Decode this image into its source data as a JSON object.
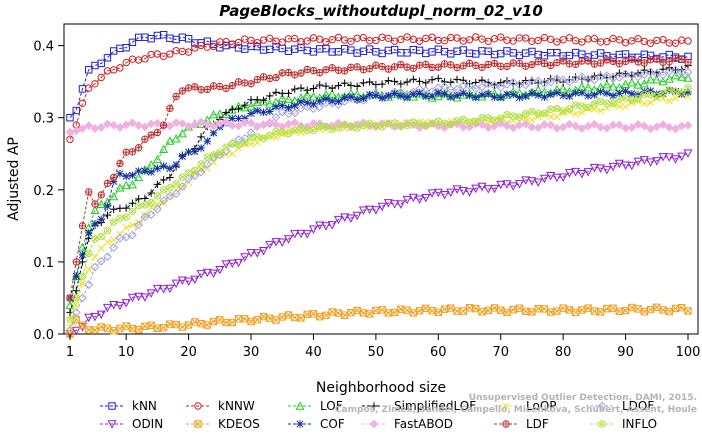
{
  "chart_data": {
    "type": "line",
    "title": "PageBlocks_withoutdupl_norm_02_v10",
    "xlabel": "Neighborhood size",
    "ylabel": "Adjusted AP",
    "xlim": [
      1,
      100
    ],
    "ylim": [
      0,
      0.43
    ],
    "xticks": [
      1,
      10,
      20,
      30,
      40,
      50,
      60,
      70,
      80,
      90,
      100
    ],
    "yticks": [
      0.0,
      0.1,
      0.2,
      0.3,
      0.4
    ],
    "ytick_labels": [
      "0.0",
      "0.1",
      "0.2",
      "0.3",
      "0.4"
    ],
    "grid": false,
    "legend_position": "bottom",
    "watermark_lines": [
      "Campos, Zimek, Sander, Campello, Micenkova, Schubert, Assent, Houle",
      "Unsupervised Outlier Detection. DAMI, 2015."
    ],
    "series": [
      {
        "name": "kNN",
        "color": "#1f1fd0",
        "marker": "square",
        "points": [
          [
            1,
            0.3
          ],
          [
            2,
            0.31
          ],
          [
            3,
            0.34
          ],
          [
            4,
            0.365
          ],
          [
            5,
            0.37
          ],
          [
            7,
            0.385
          ],
          [
            9,
            0.395
          ],
          [
            11,
            0.405
          ],
          [
            13,
            0.412
          ],
          [
            15,
            0.413
          ],
          [
            17,
            0.412
          ],
          [
            20,
            0.408
          ],
          [
            25,
            0.4
          ],
          [
            30,
            0.397
          ],
          [
            40,
            0.394
          ],
          [
            50,
            0.392
          ],
          [
            60,
            0.392
          ],
          [
            70,
            0.39
          ],
          [
            80,
            0.388
          ],
          [
            90,
            0.386
          ],
          [
            100,
            0.384
          ]
        ]
      },
      {
        "name": "kNNW",
        "color": "#d02020",
        "marker": "circle",
        "points": [
          [
            1,
            0.27
          ],
          [
            2,
            0.29
          ],
          [
            3,
            0.32
          ],
          [
            4,
            0.34
          ],
          [
            5,
            0.35
          ],
          [
            7,
            0.362
          ],
          [
            9,
            0.372
          ],
          [
            12,
            0.382
          ],
          [
            15,
            0.387
          ],
          [
            18,
            0.39
          ],
          [
            20,
            0.394
          ],
          [
            25,
            0.403
          ],
          [
            30,
            0.407
          ],
          [
            40,
            0.408
          ],
          [
            50,
            0.409
          ],
          [
            60,
            0.409
          ],
          [
            70,
            0.409
          ],
          [
            80,
            0.408
          ],
          [
            90,
            0.407
          ],
          [
            100,
            0.405
          ]
        ]
      },
      {
        "name": "LOF",
        "color": "#20d020",
        "marker": "triangle-up",
        "points": [
          [
            1,
            0.04
          ],
          [
            2,
            0.08
          ],
          [
            3,
            0.12
          ],
          [
            4,
            0.15
          ],
          [
            5,
            0.17
          ],
          [
            7,
            0.185
          ],
          [
            9,
            0.2
          ],
          [
            11,
            0.21
          ],
          [
            13,
            0.225
          ],
          [
            15,
            0.245
          ],
          [
            17,
            0.265
          ],
          [
            19,
            0.28
          ],
          [
            21,
            0.29
          ],
          [
            25,
            0.305
          ],
          [
            30,
            0.318
          ],
          [
            40,
            0.33
          ],
          [
            50,
            0.332
          ],
          [
            60,
            0.33
          ],
          [
            70,
            0.332
          ],
          [
            80,
            0.338
          ],
          [
            90,
            0.345
          ],
          [
            100,
            0.358
          ]
        ]
      },
      {
        "name": "SimplifiedLOF",
        "color": "#000000",
        "marker": "plus",
        "points": [
          [
            1,
            0.03
          ],
          [
            2,
            0.06
          ],
          [
            3,
            0.1
          ],
          [
            4,
            0.13
          ],
          [
            5,
            0.15
          ],
          [
            7,
            0.165
          ],
          [
            9,
            0.175
          ],
          [
            11,
            0.18
          ],
          [
            13,
            0.19
          ],
          [
            15,
            0.205
          ],
          [
            17,
            0.22
          ],
          [
            19,
            0.245
          ],
          [
            21,
            0.26
          ],
          [
            23,
            0.285
          ],
          [
            25,
            0.3
          ],
          [
            28,
            0.315
          ],
          [
            30,
            0.322
          ],
          [
            35,
            0.335
          ],
          [
            40,
            0.342
          ],
          [
            50,
            0.348
          ],
          [
            60,
            0.352
          ],
          [
            70,
            0.348
          ],
          [
            80,
            0.352
          ],
          [
            90,
            0.36
          ],
          [
            100,
            0.37
          ]
        ]
      },
      {
        "name": "LoOP",
        "color": "#f0e020",
        "marker": "x",
        "points": [
          [
            1,
            0.01
          ],
          [
            2,
            0.04
          ],
          [
            3,
            0.07
          ],
          [
            4,
            0.09
          ],
          [
            5,
            0.11
          ],
          [
            7,
            0.125
          ],
          [
            9,
            0.14
          ],
          [
            11,
            0.15
          ],
          [
            13,
            0.165
          ],
          [
            15,
            0.18
          ],
          [
            17,
            0.19
          ],
          [
            19,
            0.205
          ],
          [
            21,
            0.22
          ],
          [
            25,
            0.245
          ],
          [
            30,
            0.265
          ],
          [
            35,
            0.278
          ],
          [
            40,
            0.285
          ],
          [
            50,
            0.29
          ],
          [
            60,
            0.292
          ],
          [
            70,
            0.295
          ],
          [
            80,
            0.305
          ],
          [
            90,
            0.318
          ],
          [
            100,
            0.33
          ]
        ]
      },
      {
        "name": "LDOF",
        "color": "#a0a0e0",
        "marker": "diamond",
        "points": [
          [
            1,
            0.005
          ],
          [
            2,
            0.03
          ],
          [
            3,
            0.05
          ],
          [
            4,
            0.07
          ],
          [
            5,
            0.09
          ],
          [
            7,
            0.11
          ],
          [
            9,
            0.13
          ],
          [
            11,
            0.14
          ],
          [
            13,
            0.16
          ],
          [
            15,
            0.175
          ],
          [
            17,
            0.19
          ],
          [
            19,
            0.205
          ],
          [
            21,
            0.22
          ],
          [
            25,
            0.25
          ],
          [
            30,
            0.28
          ],
          [
            35,
            0.305
          ],
          [
            40,
            0.315
          ],
          [
            50,
            0.33
          ],
          [
            60,
            0.34
          ],
          [
            70,
            0.345
          ],
          [
            80,
            0.352
          ],
          [
            90,
            0.358
          ],
          [
            100,
            0.365
          ]
        ]
      },
      {
        "name": "ODIN",
        "color": "#9020d0",
        "marker": "triangle-down",
        "points": [
          [
            1,
            0.0
          ],
          [
            2,
            0.005
          ],
          [
            3,
            0.01
          ],
          [
            4,
            0.02
          ],
          [
            5,
            0.025
          ],
          [
            7,
            0.035
          ],
          [
            10,
            0.045
          ],
          [
            15,
            0.06
          ],
          [
            20,
            0.075
          ],
          [
            25,
            0.09
          ],
          [
            30,
            0.11
          ],
          [
            35,
            0.13
          ],
          [
            40,
            0.145
          ],
          [
            45,
            0.16
          ],
          [
            50,
            0.175
          ],
          [
            55,
            0.185
          ],
          [
            60,
            0.195
          ],
          [
            65,
            0.2
          ],
          [
            70,
            0.205
          ],
          [
            75,
            0.212
          ],
          [
            80,
            0.22
          ],
          [
            85,
            0.228
          ],
          [
            90,
            0.235
          ],
          [
            95,
            0.242
          ],
          [
            100,
            0.248
          ]
        ]
      },
      {
        "name": "KDEOS",
        "color": "#f0a020",
        "marker": "square-x",
        "points": [
          [
            1,
            0.0
          ],
          [
            2,
            0.02
          ],
          [
            3,
            0.012
          ],
          [
            4,
            0.008
          ],
          [
            5,
            0.007
          ],
          [
            7,
            0.007
          ],
          [
            10,
            0.008
          ],
          [
            15,
            0.01
          ],
          [
            20,
            0.013
          ],
          [
            25,
            0.017
          ],
          [
            30,
            0.02
          ],
          [
            35,
            0.023
          ],
          [
            40,
            0.026
          ],
          [
            45,
            0.029
          ],
          [
            50,
            0.031
          ],
          [
            55,
            0.032
          ],
          [
            60,
            0.033
          ],
          [
            65,
            0.034
          ],
          [
            70,
            0.033
          ],
          [
            75,
            0.033
          ],
          [
            80,
            0.033
          ],
          [
            85,
            0.033
          ],
          [
            90,
            0.034
          ],
          [
            95,
            0.034
          ],
          [
            100,
            0.034
          ]
        ]
      },
      {
        "name": "COF",
        "color": "#1030a0",
        "marker": "asterisk",
        "points": [
          [
            1,
            0.05
          ],
          [
            2,
            0.08
          ],
          [
            3,
            0.11
          ],
          [
            4,
            0.14
          ],
          [
            5,
            0.15
          ],
          [
            6,
            0.16
          ],
          [
            7,
            0.18
          ],
          [
            8,
            0.21
          ],
          [
            9,
            0.22
          ],
          [
            11,
            0.222
          ],
          [
            13,
            0.225
          ],
          [
            15,
            0.23
          ],
          [
            17,
            0.23
          ],
          [
            19,
            0.245
          ],
          [
            21,
            0.255
          ],
          [
            23,
            0.265
          ],
          [
            25,
            0.29
          ],
          [
            30,
            0.305
          ],
          [
            35,
            0.315
          ],
          [
            40,
            0.322
          ],
          [
            50,
            0.33
          ],
          [
            60,
            0.332
          ],
          [
            70,
            0.33
          ],
          [
            80,
            0.332
          ],
          [
            90,
            0.334
          ],
          [
            100,
            0.336
          ]
        ]
      },
      {
        "name": "FastABOD",
        "color": "#f0b0e0",
        "marker": "diamond-filled",
        "points": [
          [
            1,
            0.28
          ],
          [
            2,
            0.282
          ],
          [
            3,
            0.285
          ],
          [
            4,
            0.287
          ],
          [
            6,
            0.288
          ],
          [
            10,
            0.29
          ],
          [
            15,
            0.29
          ],
          [
            20,
            0.291
          ],
          [
            30,
            0.291
          ],
          [
            40,
            0.29
          ],
          [
            50,
            0.29
          ],
          [
            60,
            0.289
          ],
          [
            70,
            0.289
          ],
          [
            80,
            0.288
          ],
          [
            90,
            0.288
          ],
          [
            100,
            0.287
          ]
        ]
      },
      {
        "name": "LDF",
        "color": "#c03030",
        "marker": "circle-plus",
        "points": [
          [
            1,
            0.05
          ],
          [
            2,
            0.1
          ],
          [
            3,
            0.15
          ],
          [
            4,
            0.2
          ],
          [
            5,
            0.18
          ],
          [
            6,
            0.19
          ],
          [
            7,
            0.21
          ],
          [
            8,
            0.22
          ],
          [
            10,
            0.25
          ],
          [
            12,
            0.26
          ],
          [
            14,
            0.275
          ],
          [
            16,
            0.29
          ],
          [
            17,
            0.31
          ],
          [
            18,
            0.33
          ],
          [
            19,
            0.34
          ],
          [
            20,
            0.34
          ],
          [
            25,
            0.342
          ],
          [
            30,
            0.35
          ],
          [
            35,
            0.36
          ],
          [
            40,
            0.365
          ],
          [
            50,
            0.37
          ],
          [
            60,
            0.372
          ],
          [
            70,
            0.373
          ],
          [
            80,
            0.376
          ],
          [
            90,
            0.378
          ],
          [
            100,
            0.38
          ]
        ]
      },
      {
        "name": "INFLO",
        "color": "#b0e040",
        "marker": "circle-x",
        "points": [
          [
            1,
            0.02
          ],
          [
            2,
            0.05
          ],
          [
            3,
            0.08
          ],
          [
            4,
            0.11
          ],
          [
            5,
            0.13
          ],
          [
            7,
            0.145
          ],
          [
            9,
            0.16
          ],
          [
            11,
            0.17
          ],
          [
            13,
            0.18
          ],
          [
            15,
            0.19
          ],
          [
            17,
            0.205
          ],
          [
            19,
            0.215
          ],
          [
            21,
            0.23
          ],
          [
            25,
            0.255
          ],
          [
            30,
            0.27
          ],
          [
            35,
            0.28
          ],
          [
            40,
            0.285
          ],
          [
            50,
            0.29
          ],
          [
            60,
            0.292
          ],
          [
            70,
            0.3
          ],
          [
            80,
            0.312
          ],
          [
            90,
            0.325
          ],
          [
            100,
            0.34
          ]
        ]
      }
    ]
  }
}
